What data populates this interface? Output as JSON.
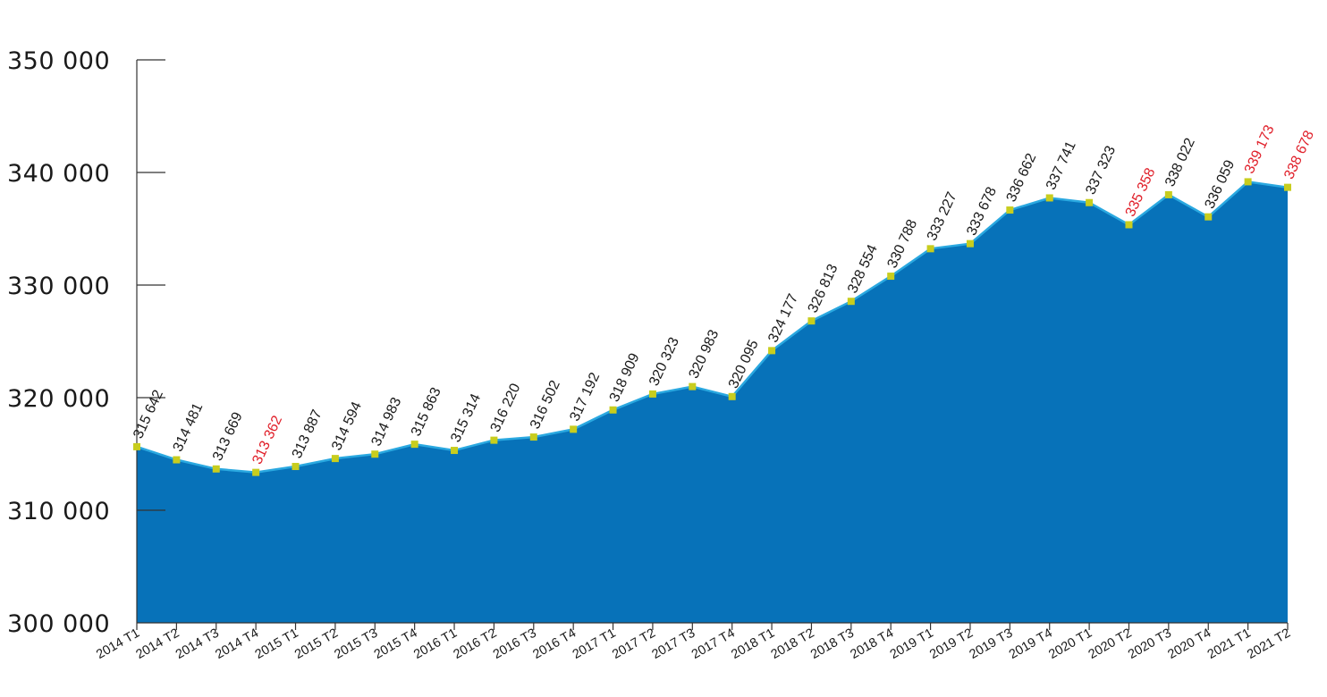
{
  "chart_data": {
    "type": "area",
    "title": "",
    "xlabel": "",
    "ylabel": "",
    "ylim": [
      300000,
      350000
    ],
    "y_ticks": [
      300000,
      310000,
      320000,
      330000,
      340000,
      350000
    ],
    "y_tick_labels": [
      "300 000",
      "310 000",
      "320 000",
      "330 000",
      "340 000",
      "350 000"
    ],
    "grid": false,
    "categories": [
      "2014 T1",
      "2014 T2",
      "2014 T3",
      "2014 T4",
      "2015 T1",
      "2015 T2",
      "2015 T3",
      "2015 T4",
      "2016 T1",
      "2016 T2",
      "2016 T3",
      "2016 T4",
      "2017 T1",
      "2017 T2",
      "2017 T3",
      "2017 T4",
      "2018 T1",
      "2018 T2",
      "2018 T3",
      "2018 T4",
      "2019 T1",
      "2019 T2",
      "2019 T3",
      "2019 T4",
      "2020 T1",
      "2020 T2",
      "2020 T3",
      "2020 T4",
      "2021 T1",
      "2021 T2"
    ],
    "series": [
      {
        "values": [
          315642,
          314481,
          313669,
          313362,
          313887,
          314594,
          314983,
          315863,
          315314,
          316220,
          316502,
          317192,
          318909,
          320323,
          320983,
          320095,
          324177,
          326813,
          328554,
          330788,
          333227,
          333678,
          336662,
          337741,
          337323,
          335358,
          338022,
          336059,
          339173,
          338678
        ],
        "labels": [
          "315 642",
          "314 481",
          "313 669",
          "313 362",
          "313 887",
          "314 594",
          "314 983",
          "315 863",
          "315 314",
          "316 220",
          "316 502",
          "317 192",
          "318 909",
          "320 323",
          "320 983",
          "320 095",
          "324 177",
          "326 813",
          "328 554",
          "330 788",
          "333 227",
          "333 678",
          "336 662",
          "337 741",
          "337 323",
          "335 358",
          "338 022",
          "336 059",
          "339 173",
          "338 678"
        ],
        "highlighted": [
          false,
          false,
          false,
          true,
          false,
          false,
          false,
          false,
          false,
          false,
          false,
          false,
          false,
          false,
          false,
          false,
          false,
          false,
          false,
          false,
          false,
          false,
          false,
          false,
          false,
          true,
          false,
          false,
          true,
          true
        ]
      }
    ],
    "colors": {
      "area_fill": "#0772b9",
      "line": "#2aa8e0",
      "marker": "#c8cd1e",
      "label": "#1a1a1a",
      "label_highlight": "#e0202a",
      "axis": "#333333"
    }
  }
}
